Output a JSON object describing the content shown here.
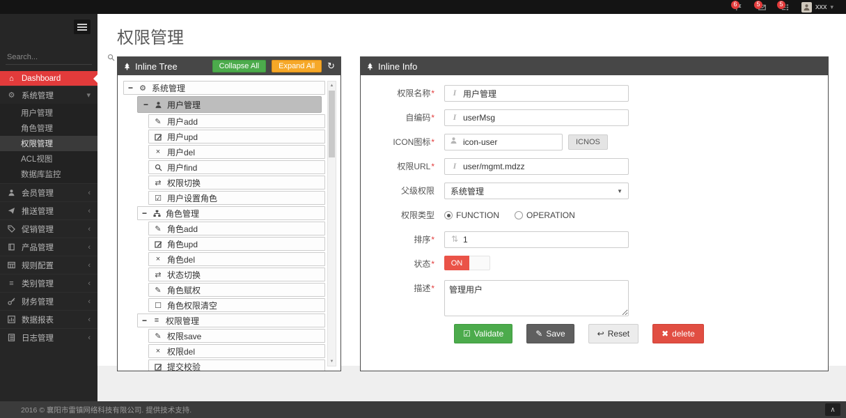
{
  "topbar": {
    "notifications": [
      {
        "name": "flag-notifications",
        "icon": "flag-icon",
        "count": "6"
      },
      {
        "name": "message-notifications",
        "icon": "envelope-icon",
        "count": "5"
      },
      {
        "name": "task-notifications",
        "icon": "tasks-icon",
        "count": "5"
      }
    ],
    "user": {
      "name": "xxx"
    }
  },
  "sidebar": {
    "search_placeholder": "Search...",
    "items": [
      {
        "name": "dashboard",
        "icon": "home-icon",
        "label": "Dashboard",
        "active": true
      },
      {
        "name": "system-mgmt",
        "icon": "gears-icon",
        "label": "系统管理",
        "chevron": "down",
        "children": [
          {
            "name": "user-mgmt",
            "label": "用户管理"
          },
          {
            "name": "role-mgmt",
            "label": "角色管理"
          },
          {
            "name": "permission-mgmt",
            "label": "权限管理",
            "active": true
          },
          {
            "name": "acl-view",
            "label": "ACL视图"
          },
          {
            "name": "db-monitor",
            "label": "数据库监控"
          }
        ]
      },
      {
        "name": "member-mgmt",
        "icon": "user-icon",
        "label": "会员管理",
        "chevron": "left"
      },
      {
        "name": "push-mgmt",
        "icon": "push-icon",
        "label": "推送管理",
        "chevron": "left"
      },
      {
        "name": "promo-mgmt",
        "icon": "tag-icon",
        "label": "促销管理",
        "chevron": "left"
      },
      {
        "name": "product-mgmt",
        "icon": "book-icon",
        "label": "产品管理",
        "chevron": "left"
      },
      {
        "name": "rule-config",
        "icon": "table-icon",
        "label": "规则配置",
        "chevron": "left"
      },
      {
        "name": "category-mgmt",
        "icon": "list-icon",
        "label": "类别管理",
        "chevron": "left"
      },
      {
        "name": "finance-mgmt",
        "icon": "key-icon",
        "label": "财务管理",
        "chevron": "left"
      },
      {
        "name": "data-report",
        "icon": "chart-icon",
        "label": "数据报表",
        "chevron": "left"
      },
      {
        "name": "log-mgmt",
        "icon": "file-icon",
        "label": "日志管理",
        "chevron": "left"
      }
    ]
  },
  "page": {
    "title": "权限管理"
  },
  "tree_panel": {
    "title": "Inline Tree",
    "collapse_label": "Collapse All",
    "expand_label": "Expand All",
    "nodes": [
      {
        "level": 0,
        "toggle": "-",
        "icon": "gears-icon",
        "label": "系统管理"
      },
      {
        "level": 1,
        "toggle": "-",
        "icon": "user-icon",
        "label": "用户管理",
        "selected": true
      },
      {
        "level": 2,
        "icon": "pencil-icon",
        "label": "用户add"
      },
      {
        "level": 2,
        "icon": "edit-icon",
        "label": "用户upd"
      },
      {
        "level": 2,
        "icon": "x-icon",
        "label": "用户del"
      },
      {
        "level": 2,
        "icon": "search-icon",
        "label": "用户find"
      },
      {
        "level": 2,
        "icon": "exchange-icon",
        "label": "权限切换"
      },
      {
        "level": 2,
        "icon": "check-square-icon",
        "label": "用户设置角色"
      },
      {
        "level": 1,
        "toggle": "-",
        "icon": "sitemap-icon",
        "label": "角色管理"
      },
      {
        "level": 2,
        "icon": "pencil-icon",
        "label": "角色add"
      },
      {
        "level": 2,
        "icon": "edit-icon",
        "label": "角色upd"
      },
      {
        "level": 2,
        "icon": "x-icon",
        "label": "角色del"
      },
      {
        "level": 2,
        "icon": "exchange-icon",
        "label": "状态切换"
      },
      {
        "level": 2,
        "icon": "pencil-icon",
        "label": "角色赋权"
      },
      {
        "level": 2,
        "icon": "square-icon",
        "label": "角色权限清空"
      },
      {
        "level": 1,
        "toggle": "-",
        "icon": "list-icon",
        "label": "权限管理"
      },
      {
        "level": 2,
        "icon": "pencil-icon",
        "label": "权限save"
      },
      {
        "level": 2,
        "icon": "x-icon",
        "label": "权限del"
      },
      {
        "level": 2,
        "icon": "edit-icon",
        "label": "提交校验"
      }
    ]
  },
  "info_panel": {
    "title": "Inline Info",
    "fields": [
      {
        "name": "permission-name-field",
        "label": "权限名称",
        "required": true,
        "type": "text",
        "icon": "italic-icon",
        "value": "用户管理"
      },
      {
        "name": "code-field",
        "label": "自编码",
        "required": true,
        "type": "text",
        "icon": "italic-icon",
        "value": "userMsg"
      },
      {
        "name": "icon-field",
        "label": "ICON图标",
        "required": true,
        "type": "text-button",
        "icon": "user-icon",
        "value": "icon-user",
        "button_label": "ICNOS"
      },
      {
        "name": "url-field",
        "label": "权限URL",
        "required": true,
        "type": "text",
        "icon": "italic-icon",
        "value": "user/mgmt.mdzz"
      },
      {
        "name": "parent-permission-select",
        "label": "父级权限",
        "required": false,
        "type": "select",
        "value": "系统管理"
      },
      {
        "name": "permission-type-radios",
        "label": "权限类型",
        "required": false,
        "type": "radio",
        "options": [
          "FUNCTION",
          "OPERATION"
        ],
        "selected": "FUNCTION"
      },
      {
        "name": "sort-field",
        "label": "排序",
        "required": true,
        "type": "text",
        "icon": "sort-icon",
        "value": "1"
      },
      {
        "name": "status-toggle",
        "label": "状态",
        "required": true,
        "type": "toggle",
        "value": "ON"
      },
      {
        "name": "description-field",
        "label": "描述",
        "required": true,
        "type": "textarea",
        "value": "管理用户"
      }
    ],
    "buttons": [
      {
        "name": "validate-button",
        "label": "Validate",
        "icon": "check-square-icon",
        "style": "green"
      },
      {
        "name": "save-button",
        "label": "Save",
        "icon": "pencil-icon",
        "style": "dark"
      },
      {
        "name": "reset-button",
        "label": "Reset",
        "icon": "reply-icon",
        "style": "light"
      },
      {
        "name": "delete-button",
        "label": "delete",
        "icon": "x-icon",
        "style": "red"
      }
    ]
  },
  "footer": {
    "text": "2016 © 襄阳市雷镇网络科技有限公司. 提供技术支持."
  },
  "colors": {
    "accent_red": "#e23b3b",
    "button_green": "#4cab4c",
    "button_orange": "#f6a828",
    "button_dark": "#5f5f5f",
    "button_delete": "#e14e42",
    "panel_header": "#474747",
    "sidebar_bg": "#262626",
    "topbar_bg": "#141414",
    "tree_selected": "#bdbdbd",
    "toggle_on": "#ea5348"
  }
}
